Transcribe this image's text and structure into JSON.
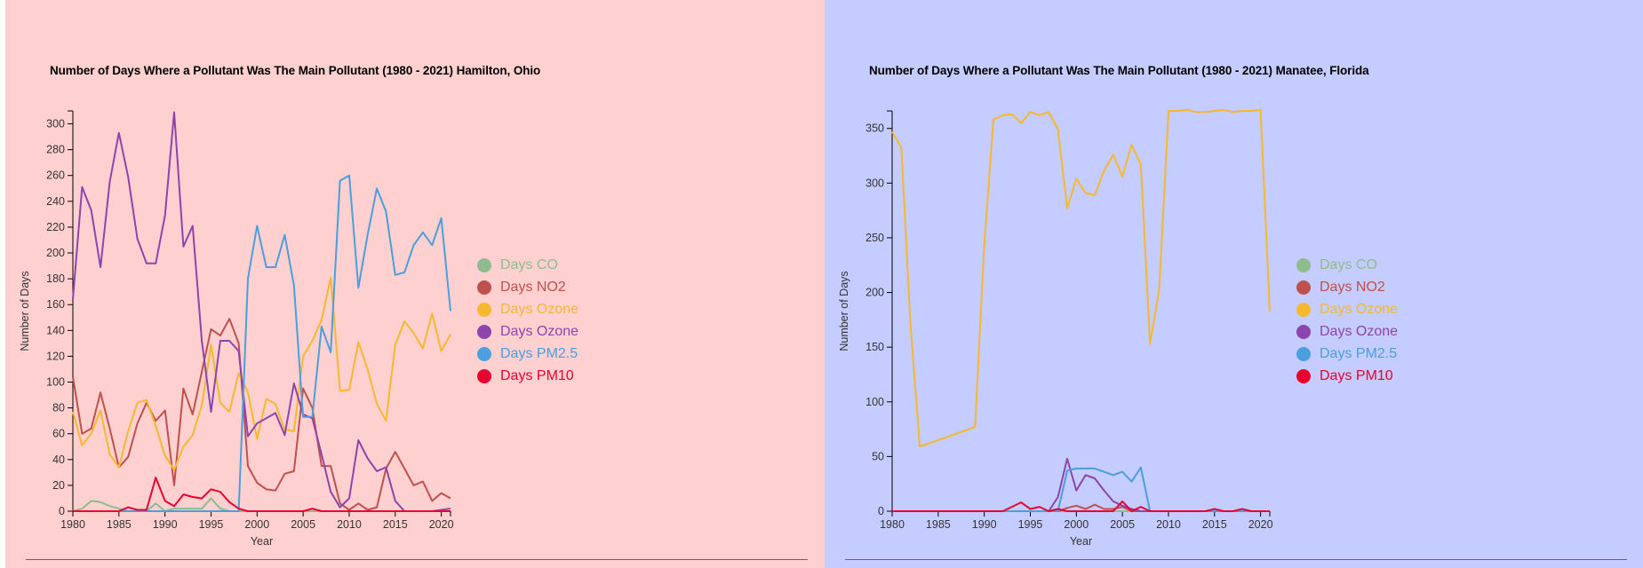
{
  "chart_data": [
    {
      "type": "line",
      "title": "Number of Days Where a Pollutant Was The Main Pollutant (1980 - 2021) Hamilton, Ohio",
      "xlabel": "Year",
      "ylabel": "Number of Days",
      "xlim": [
        1980,
        2021
      ],
      "ylim": [
        0,
        310
      ],
      "y_ticks": [
        0,
        20,
        40,
        60,
        80,
        100,
        120,
        140,
        160,
        180,
        200,
        220,
        240,
        260,
        280,
        300
      ],
      "x_ticks": [
        1980,
        1985,
        1990,
        1995,
        2000,
        2005,
        2010,
        2015,
        2020
      ],
      "legend_position": "right",
      "grid": false,
      "x": [
        1980,
        1981,
        1982,
        1983,
        1984,
        1985,
        1986,
        1987,
        1988,
        1989,
        1990,
        1991,
        1992,
        1993,
        1994,
        1995,
        1996,
        1997,
        1998,
        1999,
        2000,
        2001,
        2002,
        2003,
        2004,
        2005,
        2006,
        2007,
        2008,
        2009,
        2010,
        2011,
        2012,
        2013,
        2014,
        2015,
        2016,
        2017,
        2018,
        2019,
        2020,
        2021
      ],
      "series": [
        {
          "name": "Days CO",
          "color": "#8fbc8f",
          "values": [
            0,
            2,
            8,
            7,
            4,
            2,
            0,
            0,
            0,
            6,
            0,
            2,
            2,
            2,
            2,
            10,
            2,
            0,
            0,
            0,
            0,
            0,
            0,
            0,
            0,
            0,
            0,
            0,
            0,
            0,
            0,
            0,
            0,
            0,
            0,
            0,
            0,
            0,
            0,
            0,
            0,
            0
          ]
        },
        {
          "name": "Days NO2",
          "color": "#c0504d",
          "values": [
            104,
            60,
            64,
            92,
            64,
            34,
            42,
            68,
            84,
            70,
            78,
            20,
            95,
            75,
            108,
            141,
            136,
            149,
            130,
            35,
            22,
            17,
            16,
            29,
            31,
            95,
            80,
            35,
            35,
            6,
            1,
            6,
            1,
            3,
            33,
            46,
            33,
            20,
            23,
            8,
            14,
            10
          ]
        },
        {
          "name": "Days Ozone",
          "color": "#f5b82e",
          "values": [
            77,
            51,
            60,
            78,
            44,
            34,
            62,
            84,
            86,
            66,
            43,
            32,
            50,
            59,
            82,
            129,
            84,
            77,
            107,
            92,
            56,
            87,
            83,
            63,
            62,
            120,
            132,
            148,
            181,
            93,
            94,
            131,
            110,
            83,
            70,
            129,
            147,
            138,
            126,
            153,
            124,
            137
          ]
        },
        {
          "name": "Days Ozone",
          "color": "#8e44ad",
          "values": [
            164,
            251,
            233,
            189,
            255,
            293,
            259,
            211,
            192,
            192,
            229,
            309,
            205,
            221,
            132,
            77,
            132,
            132,
            124,
            58,
            68,
            72,
            76,
            59,
            99,
            75,
            72,
            44,
            15,
            3,
            10,
            55,
            41,
            31,
            34,
            8,
            0,
            0,
            0,
            0,
            1,
            2
          ]
        },
        {
          "name": "Days PM2.5",
          "color": "#4a9fdc",
          "values": [
            0,
            0,
            0,
            0,
            0,
            0,
            0,
            0,
            0,
            0,
            0,
            0,
            0,
            0,
            0,
            0,
            0,
            0,
            0,
            180,
            221,
            189,
            189,
            214,
            175,
            73,
            73,
            143,
            123,
            256,
            260,
            173,
            214,
            250,
            232,
            183,
            185,
            206,
            216,
            206,
            227,
            155
          ]
        },
        {
          "name": "Days PM10",
          "color": "#e8002f",
          "values": [
            0,
            0,
            0,
            0,
            0,
            0,
            3,
            1,
            1,
            26,
            8,
            4,
            13,
            11,
            10,
            17,
            15,
            7,
            2,
            0,
            0,
            0,
            0,
            0,
            0,
            0,
            2,
            0,
            0,
            0,
            0,
            0,
            0,
            0,
            0,
            0,
            0,
            0,
            0,
            0,
            0,
            0
          ]
        }
      ]
    },
    {
      "type": "line",
      "title": "Number of Days Where a Pollutant Was The Main Pollutant (1980 - 2021) Manatee, Florida",
      "xlabel": "Year",
      "ylabel": "Number of Days",
      "xlim": [
        1980,
        2021
      ],
      "ylim": [
        0,
        366
      ],
      "y_ticks": [
        0,
        50,
        100,
        150,
        200,
        250,
        300,
        350
      ],
      "x_ticks": [
        1980,
        1985,
        1990,
        1995,
        2000,
        2005,
        2010,
        2015,
        2020
      ],
      "legend_position": "right",
      "grid": false,
      "x": [
        1980,
        1981,
        1982,
        1983,
        1984,
        1985,
        1986,
        1987,
        1988,
        1989,
        1990,
        1991,
        1992,
        1993,
        1994,
        1995,
        1996,
        1997,
        1998,
        1999,
        2000,
        2001,
        2002,
        2003,
        2004,
        2005,
        2006,
        2007,
        2008,
        2009,
        2010,
        2011,
        2012,
        2013,
        2014,
        2015,
        2016,
        2017,
        2018,
        2019,
        2020,
        2021
      ],
      "series": [
        {
          "name": "Days CO",
          "color": "#8fbc8f",
          "values": [
            0,
            0,
            0,
            0,
            0,
            0,
            0,
            0,
            0,
            0,
            0,
            0,
            0,
            0,
            0,
            0,
            0,
            0,
            0,
            0,
            0,
            0,
            0,
            0,
            0,
            0,
            0,
            0,
            0,
            0,
            0,
            0,
            0,
            0,
            0,
            0,
            0,
            0,
            0,
            0,
            0,
            0
          ]
        },
        {
          "name": "Days NO2",
          "color": "#c0504d",
          "values": [
            0,
            0,
            0,
            0,
            0,
            0,
            0,
            0,
            0,
            0,
            0,
            0,
            0,
            0,
            0,
            0,
            0,
            0,
            0,
            3,
            5,
            2,
            6,
            2,
            2,
            4,
            0,
            0,
            0,
            0,
            0,
            0,
            0,
            0,
            0,
            0,
            0,
            0,
            0,
            0,
            0,
            0
          ]
        },
        {
          "name": "Days Ozone",
          "color": "#f5b82e",
          "values": [
            347,
            332,
            170,
            59,
            62,
            65,
            68,
            71,
            74,
            77,
            244,
            358,
            362,
            363,
            355,
            365,
            362,
            365,
            349,
            277,
            304,
            291,
            289,
            311,
            326,
            306,
            335,
            317,
            153,
            203,
            366,
            366,
            367,
            365,
            365,
            366,
            367,
            365,
            366,
            366,
            367,
            182
          ]
        },
        {
          "name": "Days Ozone",
          "color": "#8e44ad",
          "values": [
            0,
            0,
            0,
            0,
            0,
            0,
            0,
            0,
            0,
            0,
            0,
            0,
            0,
            0,
            0,
            0,
            0,
            0,
            13,
            48,
            19,
            33,
            30,
            19,
            9,
            5,
            2,
            0,
            0,
            0,
            0,
            0,
            0,
            0,
            0,
            0,
            0,
            0,
            0,
            0,
            0,
            0
          ]
        },
        {
          "name": "Days PM2.5",
          "color": "#4a9fdc",
          "values": [
            0,
            0,
            0,
            0,
            0,
            0,
            0,
            0,
            0,
            0,
            0,
            0,
            0,
            0,
            0,
            0,
            0,
            0,
            0,
            37,
            39,
            39,
            39,
            36,
            33,
            36,
            27,
            40,
            0,
            0,
            0,
            0,
            0,
            0,
            0,
            0,
            0,
            0,
            0,
            0,
            0,
            0
          ]
        },
        {
          "name": "Days PM10",
          "color": "#e8002f",
          "values": [
            0,
            0,
            0,
            0,
            0,
            0,
            0,
            0,
            0,
            0,
            0,
            0,
            0,
            4,
            8,
            2,
            4,
            0,
            2,
            0,
            0,
            0,
            0,
            0,
            0,
            9,
            0,
            4,
            0,
            0,
            0,
            0,
            0,
            0,
            0,
            2,
            0,
            0,
            2,
            0,
            0,
            0
          ]
        }
      ]
    }
  ],
  "legend": [
    {
      "label": "Days CO",
      "color": "#8fbc8f"
    },
    {
      "label": "Days NO2",
      "color": "#c0504d"
    },
    {
      "label": "Days Ozone",
      "color": "#f5b82e"
    },
    {
      "label": "Days Ozone",
      "color": "#8e44ad"
    },
    {
      "label": "Days PM2.5",
      "color": "#4a9fdc"
    },
    {
      "label": "Days PM10",
      "color": "#e8002f"
    }
  ],
  "colors": {
    "left_panel_background": "#ffd0d0",
    "right_panel_background": "#c5ccff"
  }
}
